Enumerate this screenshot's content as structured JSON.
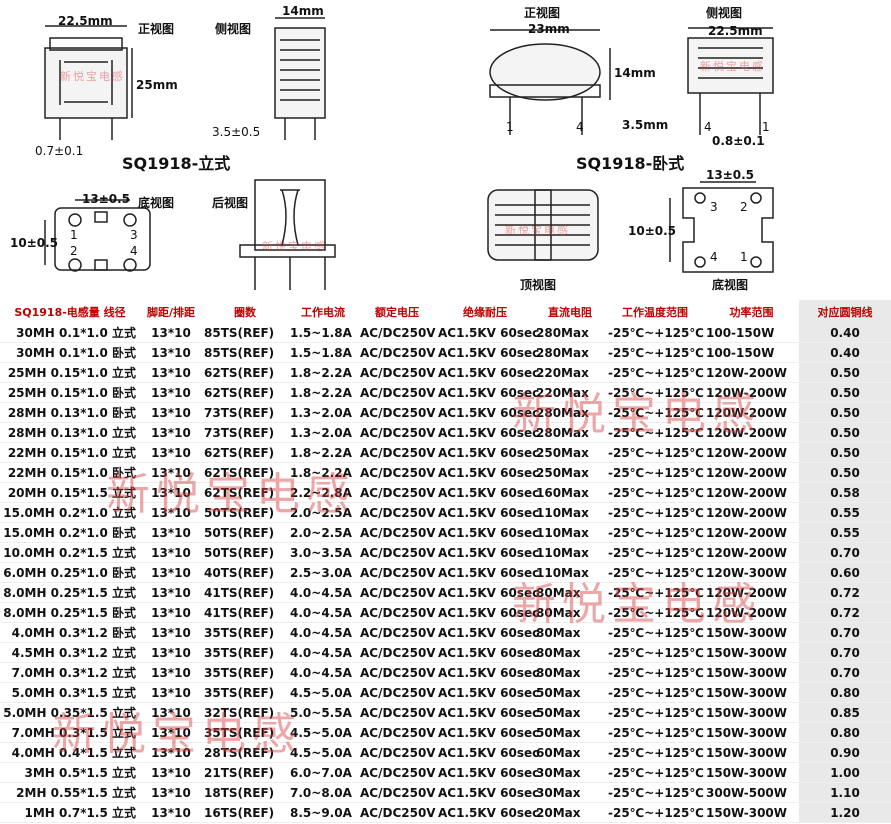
{
  "vertical": {
    "model_title": "SQ1918-立式",
    "front_view": "正视图",
    "side_view": "侧视图",
    "bottom_view": "底视图",
    "back_view": "后视图",
    "width_dim": "22.5mm",
    "height_dim": "25mm",
    "depth_dim": "14mm",
    "pin_len_dim": "3.5±0.5",
    "pin_dia_dim": "0.7±0.1",
    "pitch_dim": "13±0.5",
    "row_dim": "10±0.5",
    "pins": [
      "1",
      "2",
      "3",
      "4"
    ]
  },
  "horizontal": {
    "model_title": "SQ1918-卧式",
    "front_view": "正视图",
    "side_view": "侧视图",
    "top_view": "顶视图",
    "bottom_view": "底视图",
    "width_dim": "23mm",
    "side_width_dim": "22.5mm",
    "height_dim": "14mm",
    "pin_len_dim": "3.5mm",
    "pin_dia_dim": "0.8±0.1",
    "pitch_dim": "13±0.5",
    "row_dim": "10±0.5",
    "pins": [
      "1",
      "2",
      "3",
      "4"
    ]
  },
  "watermark": "新悦宝电感",
  "table": {
    "headers": [
      "SQ1918-电感量 线径",
      "脚距/排距",
      "圈数",
      "工作电流",
      "额定电压",
      "绝缘耐压",
      "直流电阻",
      "工作温度范围",
      "功率范围",
      "对应圆铜线"
    ],
    "rows": [
      [
        "30MH 0.1*1.0 立式",
        "13*10",
        "85TS(REF)",
        "1.5~1.8A",
        "AC/DC250V",
        "AC1.5KV 60sec",
        "280Max",
        "-25℃~+125℃",
        "100-150W",
        "0.40"
      ],
      [
        "30MH 0.1*1.0 卧式",
        "13*10",
        "85TS(REF)",
        "1.5~1.8A",
        "AC/DC250V",
        "AC1.5KV 60sec",
        "280Max",
        "-25℃~+125℃",
        "100-150W",
        "0.40"
      ],
      [
        "25MH 0.15*1.0 立式",
        "13*10",
        "62TS(REF)",
        "1.8~2.2A",
        "AC/DC250V",
        "AC1.5KV 60sec",
        "220Max",
        "-25℃~+125℃",
        "120W-200W",
        "0.50"
      ],
      [
        "25MH 0.15*1.0 卧式",
        "13*10",
        "62TS(REF)",
        "1.8~2.2A",
        "AC/DC250V",
        "AC1.5KV 60sec",
        "220Max",
        "-25℃~+125℃",
        "120W-200W",
        "0.50"
      ],
      [
        "28MH 0.13*1.0 卧式",
        "13*10",
        "73TS(REF)",
        "1.3~2.0A",
        "AC/DC250V",
        "AC1.5KV 60sec",
        "280Max",
        "-25℃~+125℃",
        "120W-200W",
        "0.50"
      ],
      [
        "28MH 0.13*1.0 立式",
        "13*10",
        "73TS(REF)",
        "1.3~2.0A",
        "AC/DC250V",
        "AC1.5KV 60sec",
        "280Max",
        "-25℃~+125℃",
        "120W-200W",
        "0.50"
      ],
      [
        "22MH 0.15*1.0 立式",
        "13*10",
        "62TS(REF)",
        "1.8~2.2A",
        "AC/DC250V",
        "AC1.5KV 60sec",
        "250Max",
        "-25℃~+125℃",
        "120W-200W",
        "0.50"
      ],
      [
        "22MH 0.15*1.0 卧式",
        "13*10",
        "62TS(REF)",
        "1.8~2.2A",
        "AC/DC250V",
        "AC1.5KV 60sec",
        "250Max",
        "-25℃~+125℃",
        "120W-200W",
        "0.50"
      ],
      [
        "20MH 0.15*1.5 立式",
        "13*10",
        "62TS(REF)",
        "2.2~2.8A",
        "AC/DC250V",
        "AC1.5KV 60sec",
        "160Max",
        "-25℃~+125℃",
        "120W-200W",
        "0.58"
      ],
      [
        "15.0MH 0.2*1.0 立式",
        "13*10",
        "50TS(REF)",
        "2.0~2.5A",
        "AC/DC250V",
        "AC1.5KV 60sec",
        "110Max",
        "-25℃~+125℃",
        "120W-200W",
        "0.55"
      ],
      [
        "15.0MH 0.2*1.0 卧式",
        "13*10",
        "50TS(REF)",
        "2.0~2.5A",
        "AC/DC250V",
        "AC1.5KV 60sec",
        "110Max",
        "-25℃~+125℃",
        "120W-200W",
        "0.55"
      ],
      [
        "10.0MH 0.2*1.5 立式",
        "13*10",
        "50TS(REF)",
        "3.0~3.5A",
        "AC/DC250V",
        "AC1.5KV 60sec",
        "110Max",
        "-25℃~+125℃",
        "120W-200W",
        "0.70"
      ],
      [
        "6.0MH 0.25*1.0 卧式",
        "13*10",
        "40TS(REF)",
        "2.5~3.0A",
        "AC/DC250V",
        "AC1.5KV 60sec",
        "110Max",
        "-25℃~+125℃",
        "120W-300W",
        "0.60"
      ],
      [
        "8.0MH 0.25*1.5 立式",
        "13*10",
        "41TS(REF)",
        "4.0~4.5A",
        "AC/DC250V",
        "AC1.5KV 60sec",
        "80Max",
        "-25℃~+125℃",
        "120W-200W",
        "0.72"
      ],
      [
        "8.0MH 0.25*1.5 卧式",
        "13*10",
        "41TS(REF)",
        "4.0~4.5A",
        "AC/DC250V",
        "AC1.5KV 60sec",
        "80Max",
        "-25℃~+125℃",
        "120W-200W",
        "0.72"
      ],
      [
        "4.0MH 0.3*1.2 卧式",
        "13*10",
        "35TS(REF)",
        "4.0~4.5A",
        "AC/DC250V",
        "AC1.5KV 60sec",
        "80Max",
        "-25℃~+125℃",
        "150W-300W",
        "0.70"
      ],
      [
        "4.5MH 0.3*1.2 立式",
        "13*10",
        "35TS(REF)",
        "4.0~4.5A",
        "AC/DC250V",
        "AC1.5KV 60sec",
        "80Max",
        "-25℃~+125℃",
        "150W-300W",
        "0.70"
      ],
      [
        "7.0MH 0.3*1.2 立式",
        "13*10",
        "35TS(REF)",
        "4.0~4.5A",
        "AC/DC250V",
        "AC1.5KV 60sec",
        "80Max",
        "-25℃~+125℃",
        "150W-300W",
        "0.70"
      ],
      [
        "5.0MH 0.3*1.5 立式",
        "13*10",
        "35TS(REF)",
        "4.5~5.0A",
        "AC/DC250V",
        "AC1.5KV 60sec",
        "50Max",
        "-25℃~+125℃",
        "150W-300W",
        "0.80"
      ],
      [
        "5.0MH 0.35*1.5 立式",
        "13*10",
        "32TS(REF)",
        "5.0~5.5A",
        "AC/DC250V",
        "AC1.5KV 60sec",
        "50Max",
        "-25℃~+125℃",
        "150W-300W",
        "0.85"
      ],
      [
        "7.0MH 0.3*1.5 立式",
        "13*10",
        "35TS(REF)",
        "4.5~5.0A",
        "AC/DC250V",
        "AC1.5KV 60sec",
        "50Max",
        "-25℃~+125℃",
        "150W-300W",
        "0.80"
      ],
      [
        "4.0MH 0.4*1.5 立式",
        "13*10",
        "28TS(REF)",
        "4.5~5.0A",
        "AC/DC250V",
        "AC1.5KV 60sec",
        "60Max",
        "-25℃~+125℃",
        "150W-300W",
        "0.90"
      ],
      [
        "3MH 0.5*1.5 立式",
        "13*10",
        "21TS(REF)",
        "6.0~7.0A",
        "AC/DC250V",
        "AC1.5KV 60sec",
        "30Max",
        "-25℃~+125℃",
        "150W-300W",
        "1.00"
      ],
      [
        "2MH 0.55*1.5 立式",
        "13*10",
        "18TS(REF)",
        "7.0~8.0A",
        "AC/DC250V",
        "AC1.5KV 60sec",
        "30Max",
        "-25℃~+125℃",
        "300W-500W",
        "1.10"
      ],
      [
        "1MH 0.7*1.5 立式",
        "13*10",
        "16TS(REF)",
        "8.5~9.0A",
        "AC/DC250V",
        "AC1.5KV 60sec",
        "20Max",
        "-25℃~+125℃",
        "150W-300W",
        "1.20"
      ]
    ]
  },
  "colors": {
    "header_text": "#c00000",
    "watermark": "#d63c3c",
    "copper_col_bg": "#e9e9e9"
  }
}
